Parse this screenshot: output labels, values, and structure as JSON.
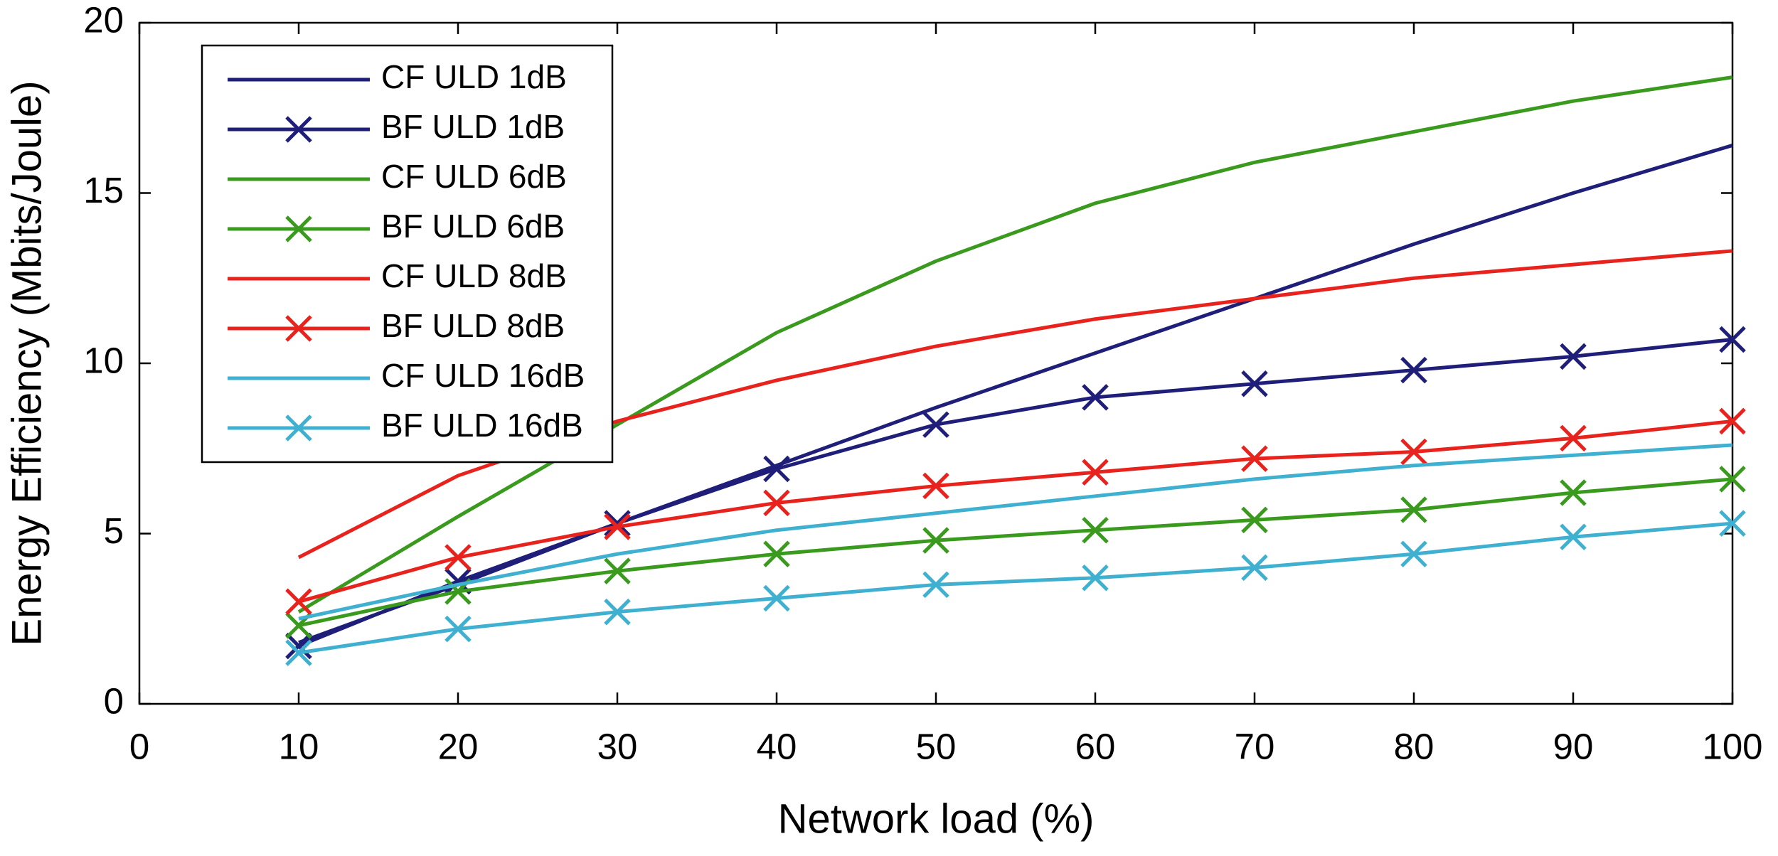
{
  "chart_data": {
    "type": "line",
    "x_label": "Network load (%)",
    "y_label": "Energy Efficiency (Mbits/Joule)",
    "x": [
      10,
      20,
      30,
      40,
      50,
      60,
      70,
      80,
      90,
      100
    ],
    "xlim": [
      0,
      100
    ],
    "xticks": [
      0,
      10,
      20,
      30,
      40,
      50,
      60,
      70,
      80,
      90,
      100
    ],
    "ylim": [
      0,
      20
    ],
    "yticks": [
      0,
      5,
      10,
      15,
      20
    ],
    "grid": false,
    "legend": "upper left",
    "series": [
      {
        "name": "CF ULD 1dB",
        "color": "#1f1f7a",
        "values": [
          1.8,
          3.5,
          5.3,
          7.0,
          8.7,
          10.3,
          11.9,
          13.5,
          15.0,
          16.4
        ]
      },
      {
        "name": "BF ULD 1dB",
        "color": "#1f1f7a",
        "marker": "x",
        "values": [
          1.7,
          3.6,
          5.3,
          6.9,
          8.2,
          9.0,
          9.4,
          9.8,
          10.2,
          10.7
        ]
      },
      {
        "name": "CF ULD 6dB",
        "color": "#3a9a1e",
        "values": [
          2.7,
          5.5,
          8.2,
          10.9,
          13.0,
          14.7,
          15.9,
          16.8,
          17.7,
          18.4
        ]
      },
      {
        "name": "BF ULD 6dB",
        "color": "#3a9a1e",
        "marker": "x",
        "values": [
          2.3,
          3.3,
          3.9,
          4.4,
          4.8,
          5.1,
          5.4,
          5.7,
          6.2,
          6.6
        ]
      },
      {
        "name": "CF ULD 8dB",
        "color": "#e8221c",
        "values": [
          4.3,
          6.7,
          8.3,
          9.5,
          10.5,
          11.3,
          11.9,
          12.5,
          12.9,
          13.3
        ]
      },
      {
        "name": "BF ULD 8dB",
        "color": "#e8221c",
        "marker": "x",
        "values": [
          3.0,
          4.3,
          5.2,
          5.9,
          6.4,
          6.8,
          7.2,
          7.4,
          7.8,
          8.3
        ]
      },
      {
        "name": "CF ULD 16dB",
        "color": "#3fb0d0",
        "values": [
          2.5,
          3.5,
          4.4,
          5.1,
          5.6,
          6.1,
          6.6,
          7.0,
          7.3,
          7.6
        ]
      },
      {
        "name": "BF ULD 16dB",
        "color": "#3fb0d0",
        "marker": "x",
        "values": [
          1.5,
          2.2,
          2.7,
          3.1,
          3.5,
          3.7,
          4.0,
          4.4,
          4.9,
          5.3
        ]
      }
    ]
  }
}
